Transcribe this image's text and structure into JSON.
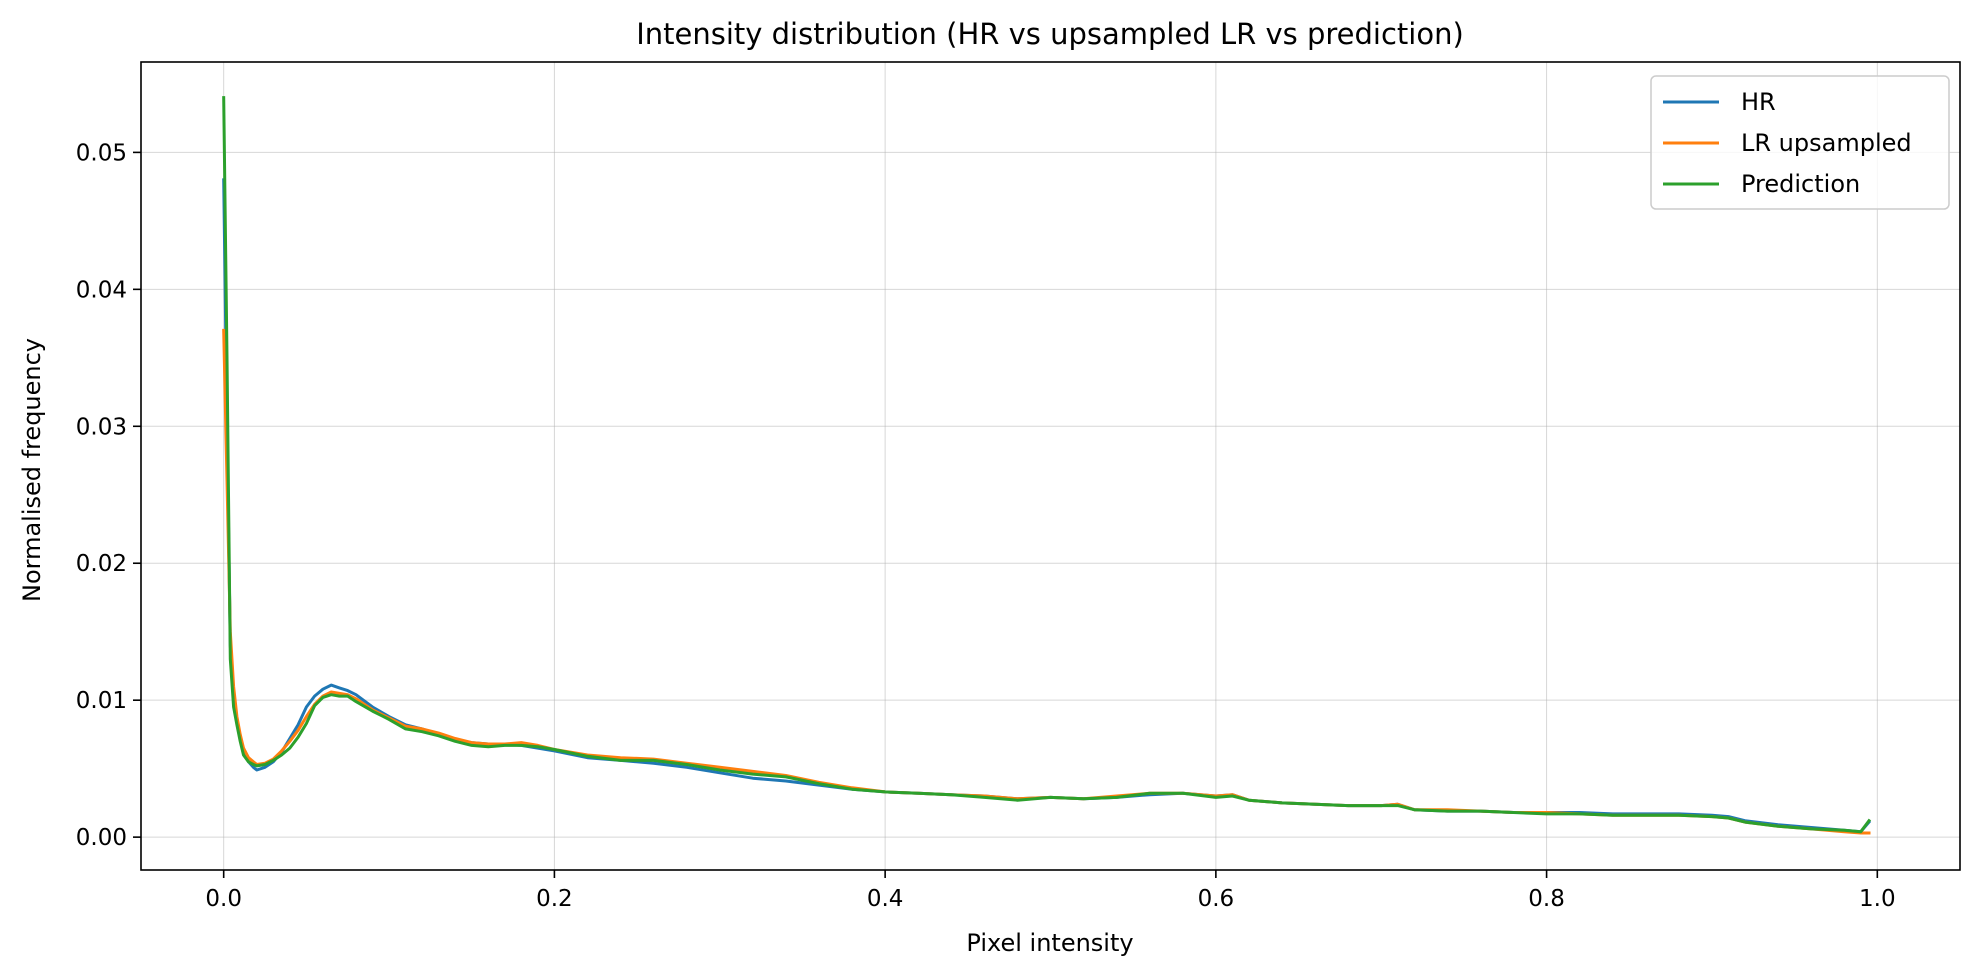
{
  "chart_data": {
    "type": "line",
    "title": "Intensity distribution (HR vs upsampled LR vs prediction)",
    "xlabel": "Pixel intensity",
    "ylabel": "Normalised frequency",
    "xlim": [
      -0.05,
      1.05
    ],
    "ylim": [
      -0.0024,
      0.0566
    ],
    "xticks": [
      0.0,
      0.2,
      0.4,
      0.6,
      0.8,
      1.0
    ],
    "xtick_labels": [
      "0.0",
      "0.2",
      "0.4",
      "0.6",
      "0.8",
      "1.0"
    ],
    "yticks": [
      0.0,
      0.01,
      0.02,
      0.03,
      0.04,
      0.05
    ],
    "ytick_labels": [
      "0.00",
      "0.01",
      "0.02",
      "0.03",
      "0.04",
      "0.05"
    ],
    "grid": true,
    "legend_position": "top-right",
    "series": [
      {
        "name": "HR",
        "color": "#1f77b4",
        "x": [
          0.0,
          0.002,
          0.004,
          0.006,
          0.008,
          0.01,
          0.012,
          0.015,
          0.018,
          0.02,
          0.025,
          0.03,
          0.035,
          0.04,
          0.045,
          0.05,
          0.055,
          0.06,
          0.065,
          0.07,
          0.075,
          0.08,
          0.09,
          0.1,
          0.11,
          0.12,
          0.13,
          0.14,
          0.15,
          0.16,
          0.17,
          0.18,
          0.19,
          0.2,
          0.22,
          0.24,
          0.26,
          0.28,
          0.3,
          0.32,
          0.34,
          0.36,
          0.38,
          0.4,
          0.42,
          0.44,
          0.46,
          0.48,
          0.5,
          0.52,
          0.54,
          0.56,
          0.58,
          0.6,
          0.61,
          0.62,
          0.64,
          0.66,
          0.68,
          0.7,
          0.71,
          0.72,
          0.74,
          0.76,
          0.78,
          0.8,
          0.82,
          0.84,
          0.86,
          0.88,
          0.9,
          0.91,
          0.92,
          0.94,
          0.96,
          0.98,
          0.99,
          0.995
        ],
        "y": [
          0.048,
          0.03,
          0.014,
          0.01,
          0.0085,
          0.0072,
          0.0062,
          0.0055,
          0.0051,
          0.0049,
          0.0051,
          0.0055,
          0.0062,
          0.0072,
          0.0082,
          0.0095,
          0.0103,
          0.0108,
          0.0111,
          0.0109,
          0.0107,
          0.0104,
          0.0095,
          0.0088,
          0.0082,
          0.0079,
          0.0075,
          0.0071,
          0.0069,
          0.0068,
          0.0068,
          0.0067,
          0.0065,
          0.0063,
          0.0058,
          0.0056,
          0.0054,
          0.0051,
          0.0047,
          0.0043,
          0.0041,
          0.0038,
          0.0035,
          0.0033,
          0.0032,
          0.0031,
          0.003,
          0.0028,
          0.0029,
          0.0028,
          0.0029,
          0.0031,
          0.0032,
          0.003,
          0.0031,
          0.0027,
          0.0025,
          0.0024,
          0.0023,
          0.0023,
          0.0024,
          0.002,
          0.0019,
          0.0019,
          0.0018,
          0.0018,
          0.0018,
          0.0017,
          0.0017,
          0.0017,
          0.0016,
          0.0015,
          0.0012,
          0.0009,
          0.0007,
          0.0005,
          0.0004,
          0.0011
        ]
      },
      {
        "name": "LR upsampled",
        "color": "#ff7f0e",
        "x": [
          0.0,
          0.002,
          0.004,
          0.006,
          0.008,
          0.01,
          0.012,
          0.015,
          0.018,
          0.02,
          0.025,
          0.03,
          0.035,
          0.04,
          0.045,
          0.05,
          0.055,
          0.06,
          0.065,
          0.07,
          0.075,
          0.08,
          0.09,
          0.1,
          0.11,
          0.12,
          0.13,
          0.14,
          0.15,
          0.16,
          0.17,
          0.18,
          0.19,
          0.2,
          0.22,
          0.24,
          0.26,
          0.28,
          0.3,
          0.32,
          0.34,
          0.36,
          0.38,
          0.4,
          0.42,
          0.44,
          0.46,
          0.48,
          0.5,
          0.52,
          0.54,
          0.56,
          0.58,
          0.6,
          0.61,
          0.62,
          0.64,
          0.66,
          0.68,
          0.7,
          0.71,
          0.72,
          0.74,
          0.76,
          0.78,
          0.8,
          0.82,
          0.84,
          0.86,
          0.88,
          0.9,
          0.91,
          0.92,
          0.94,
          0.96,
          0.98,
          0.99,
          0.995
        ],
        "y": [
          0.037,
          0.026,
          0.015,
          0.011,
          0.0088,
          0.0075,
          0.0065,
          0.0058,
          0.0055,
          0.0053,
          0.0054,
          0.0057,
          0.0063,
          0.007,
          0.0078,
          0.0088,
          0.0097,
          0.0103,
          0.0106,
          0.0105,
          0.0104,
          0.0101,
          0.0093,
          0.0087,
          0.0081,
          0.0079,
          0.0076,
          0.0072,
          0.0069,
          0.0068,
          0.0068,
          0.0069,
          0.0067,
          0.0064,
          0.006,
          0.0058,
          0.0057,
          0.0054,
          0.0051,
          0.0048,
          0.0045,
          0.004,
          0.0036,
          0.0033,
          0.0032,
          0.0031,
          0.003,
          0.0028,
          0.0029,
          0.0028,
          0.003,
          0.0032,
          0.0032,
          0.003,
          0.0031,
          0.0027,
          0.0025,
          0.0024,
          0.0023,
          0.0023,
          0.0024,
          0.002,
          0.002,
          0.0019,
          0.0018,
          0.0018,
          0.0017,
          0.0016,
          0.0016,
          0.0016,
          0.0015,
          0.0014,
          0.0011,
          0.0008,
          0.0006,
          0.0004,
          0.0003,
          0.0003
        ]
      },
      {
        "name": "Prediction",
        "color": "#2ca02c",
        "x": [
          0.0,
          0.002,
          0.004,
          0.006,
          0.008,
          0.01,
          0.012,
          0.015,
          0.018,
          0.02,
          0.025,
          0.03,
          0.035,
          0.04,
          0.045,
          0.05,
          0.055,
          0.06,
          0.065,
          0.07,
          0.075,
          0.08,
          0.09,
          0.1,
          0.11,
          0.12,
          0.13,
          0.14,
          0.15,
          0.16,
          0.17,
          0.18,
          0.19,
          0.2,
          0.22,
          0.24,
          0.26,
          0.28,
          0.3,
          0.32,
          0.34,
          0.36,
          0.38,
          0.4,
          0.42,
          0.44,
          0.46,
          0.48,
          0.5,
          0.52,
          0.54,
          0.56,
          0.58,
          0.6,
          0.61,
          0.62,
          0.64,
          0.66,
          0.68,
          0.7,
          0.71,
          0.72,
          0.74,
          0.76,
          0.78,
          0.8,
          0.82,
          0.84,
          0.86,
          0.88,
          0.9,
          0.91,
          0.92,
          0.94,
          0.96,
          0.98,
          0.99,
          0.995
        ],
        "y": [
          0.054,
          0.035,
          0.013,
          0.0095,
          0.0082,
          0.007,
          0.006,
          0.0055,
          0.0053,
          0.0052,
          0.0053,
          0.0056,
          0.006,
          0.0065,
          0.0073,
          0.0083,
          0.0096,
          0.0102,
          0.0104,
          0.0103,
          0.0103,
          0.0099,
          0.0092,
          0.0086,
          0.0079,
          0.0077,
          0.0074,
          0.007,
          0.0067,
          0.0066,
          0.0067,
          0.0067,
          0.0066,
          0.0064,
          0.0059,
          0.0056,
          0.0056,
          0.0053,
          0.0049,
          0.0046,
          0.0044,
          0.0039,
          0.0035,
          0.0033,
          0.0032,
          0.0031,
          0.0029,
          0.0027,
          0.0029,
          0.0028,
          0.0029,
          0.0032,
          0.0032,
          0.0029,
          0.003,
          0.0027,
          0.0025,
          0.0024,
          0.0023,
          0.0023,
          0.0023,
          0.002,
          0.0019,
          0.0019,
          0.0018,
          0.0017,
          0.0017,
          0.0016,
          0.0016,
          0.0016,
          0.0015,
          0.0014,
          0.0011,
          0.0008,
          0.0006,
          0.0005,
          0.0004,
          0.0012
        ]
      }
    ]
  }
}
